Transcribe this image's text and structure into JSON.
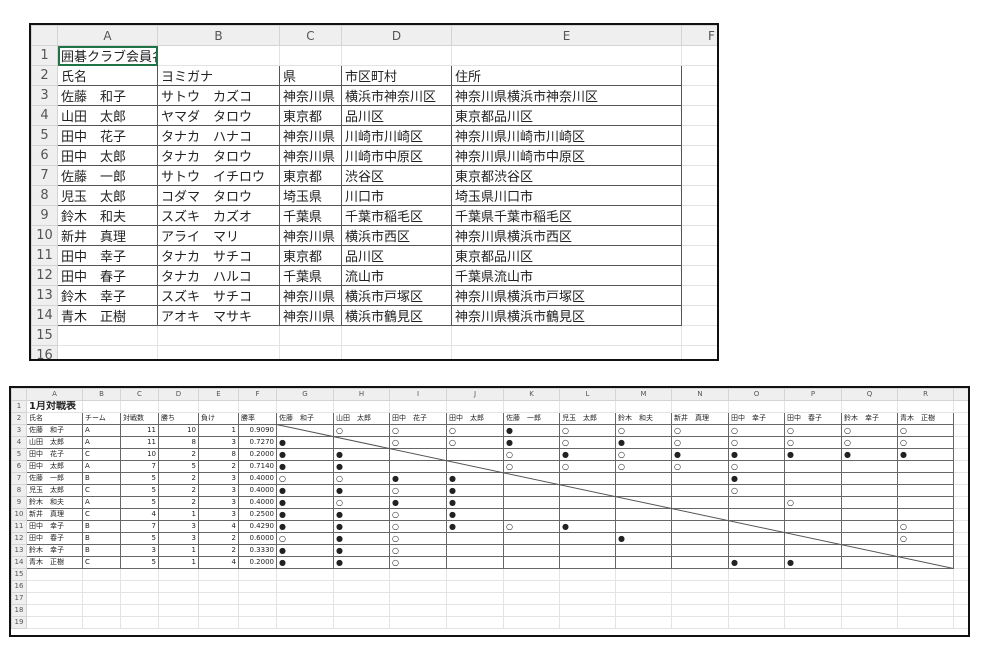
{
  "top_sheet": {
    "columns": [
      "A",
      "B",
      "C",
      "D",
      "E",
      "F"
    ],
    "title": "囲碁クラブ会員名簿",
    "headers": [
      "氏名",
      "ヨミガナ",
      "県",
      "市区町村",
      "住所"
    ],
    "rows": [
      [
        "佐藤　和子",
        "サトウ　カズコ",
        "神奈川県",
        "横浜市神奈川区",
        "神奈川県横浜市神奈川区"
      ],
      [
        "山田　太郎",
        "ヤマダ　タロウ",
        "東京都",
        "品川区",
        "東京都品川区"
      ],
      [
        "田中　花子",
        "タナカ　ハナコ",
        "神奈川県",
        "川崎市川崎区",
        "神奈川県川崎市川崎区"
      ],
      [
        "田中　太郎",
        "タナカ　タロウ",
        "神奈川県",
        "川崎市中原区",
        "神奈川県川崎市中原区"
      ],
      [
        "佐藤　一郎",
        "サトウ　イチロウ",
        "東京都",
        "渋谷区",
        "東京都渋谷区"
      ],
      [
        "児玉　太郎",
        "コダマ　タロウ",
        "埼玉県",
        "川口市",
        "埼玉県川口市"
      ],
      [
        "鈴木　和夫",
        "スズキ　カズオ",
        "千葉県",
        "千葉市稲毛区",
        "千葉県千葉市稲毛区"
      ],
      [
        "新井　真理",
        "アライ　マリ",
        "神奈川県",
        "横浜市西区",
        "神奈川県横浜市西区"
      ],
      [
        "田中　幸子",
        "タナカ　サチコ",
        "東京都",
        "品川区",
        "東京都品川区"
      ],
      [
        "田中　春子",
        "タナカ　ハルコ",
        "千葉県",
        "流山市",
        "千葉県流山市"
      ],
      [
        "鈴木　幸子",
        "スズキ　サチコ",
        "神奈川県",
        "横浜市戸塚区",
        "神奈川県横浜市戸塚区"
      ],
      [
        "青木　正樹",
        "アオキ　マサキ",
        "神奈川県",
        "横浜市鶴見区",
        "神奈川県横浜市鶴見区"
      ]
    ],
    "row_count": 16
  },
  "bottom_sheet": {
    "columns": [
      "A",
      "B",
      "C",
      "D",
      "E",
      "F",
      "G",
      "H",
      "I",
      "J",
      "K",
      "L",
      "M",
      "N",
      "O",
      "P",
      "Q",
      "R"
    ],
    "title": "1月対戦表",
    "headers": [
      "氏名",
      "チーム",
      "対戦数",
      "勝ち",
      "負け",
      "勝率"
    ],
    "opponents": [
      "佐藤　和子",
      "山田　太郎",
      "田中　花子",
      "田中　太郎",
      "佐藤　一郎",
      "児玉　太郎",
      "鈴木　和夫",
      "新井　真理",
      "田中　幸子",
      "田中　春子",
      "鈴木　幸子",
      "青木　正樹"
    ],
    "rows": [
      {
        "name": "佐藤　和子",
        "team": "A",
        "games": 11,
        "wins": 10,
        "losses": 1,
        "rate": "0.9090",
        "results": [
          "",
          "○",
          "○",
          "○",
          "●",
          "○",
          "○",
          "○",
          "○",
          "○",
          "○",
          "○"
        ]
      },
      {
        "name": "山田　太郎",
        "team": "A",
        "games": 11,
        "wins": 8,
        "losses": 3,
        "rate": "0.7270",
        "results": [
          "●",
          "",
          "○",
          "○",
          "●",
          "○",
          "●",
          "○",
          "○",
          "○",
          "○",
          "○"
        ]
      },
      {
        "name": "田中　花子",
        "team": "C",
        "games": 10,
        "wins": 2,
        "losses": 8,
        "rate": "0.2000",
        "results": [
          "●",
          "●",
          "",
          "",
          "○",
          "●",
          "○",
          "●",
          "●",
          "●",
          "●",
          "●"
        ]
      },
      {
        "name": "田中　太郎",
        "team": "A",
        "games": 7,
        "wins": 5,
        "losses": 2,
        "rate": "0.7140",
        "results": [
          "●",
          "●",
          "",
          "",
          "○",
          "○",
          "○",
          "○",
          "○",
          "",
          "",
          ""
        ]
      },
      {
        "name": "佐藤　一郎",
        "team": "B",
        "games": 5,
        "wins": 2,
        "losses": 3,
        "rate": "0.4000",
        "results": [
          "○",
          "○",
          "●",
          "●",
          "",
          "",
          "",
          "",
          "●",
          "",
          "",
          ""
        ]
      },
      {
        "name": "児玉　太郎",
        "team": "C",
        "games": 5,
        "wins": 2,
        "losses": 3,
        "rate": "0.4000",
        "results": [
          "●",
          "●",
          "○",
          "●",
          "",
          "",
          "",
          "",
          "○",
          "",
          "",
          ""
        ]
      },
      {
        "name": "鈴木　和夫",
        "team": "A",
        "games": 5,
        "wins": 2,
        "losses": 3,
        "rate": "0.4000",
        "results": [
          "●",
          "○",
          "●",
          "●",
          "",
          "",
          "",
          "",
          "",
          "○",
          "",
          ""
        ]
      },
      {
        "name": "新井　真理",
        "team": "C",
        "games": 4,
        "wins": 1,
        "losses": 3,
        "rate": "0.2500",
        "results": [
          "●",
          "●",
          "○",
          "●",
          "",
          "",
          "",
          "",
          "",
          "",
          "",
          ""
        ]
      },
      {
        "name": "田中　幸子",
        "team": "B",
        "games": 7,
        "wins": 3,
        "losses": 4,
        "rate": "0.4290",
        "results": [
          "●",
          "●",
          "○",
          "●",
          "○",
          "●",
          "",
          "",
          "",
          "",
          "",
          "○"
        ]
      },
      {
        "name": "田中　春子",
        "team": "B",
        "games": 5,
        "wins": 3,
        "losses": 2,
        "rate": "0.6000",
        "results": [
          "○",
          "●",
          "○",
          "",
          "",
          "",
          "●",
          "",
          "",
          "",
          "",
          "○"
        ]
      },
      {
        "name": "鈴木　幸子",
        "team": "B",
        "games": 3,
        "wins": 1,
        "losses": 2,
        "rate": "0.3330",
        "results": [
          "●",
          "●",
          "○",
          "",
          "",
          "",
          "",
          "",
          "",
          "",
          "",
          ""
        ]
      },
      {
        "name": "青木　正樹",
        "team": "C",
        "games": 5,
        "wins": 1,
        "losses": 4,
        "rate": "0.2000",
        "results": [
          "●",
          "●",
          "○",
          "",
          "",
          "",
          "",
          "",
          "●",
          "●",
          "",
          ""
        ]
      }
    ],
    "row_count": 19
  }
}
